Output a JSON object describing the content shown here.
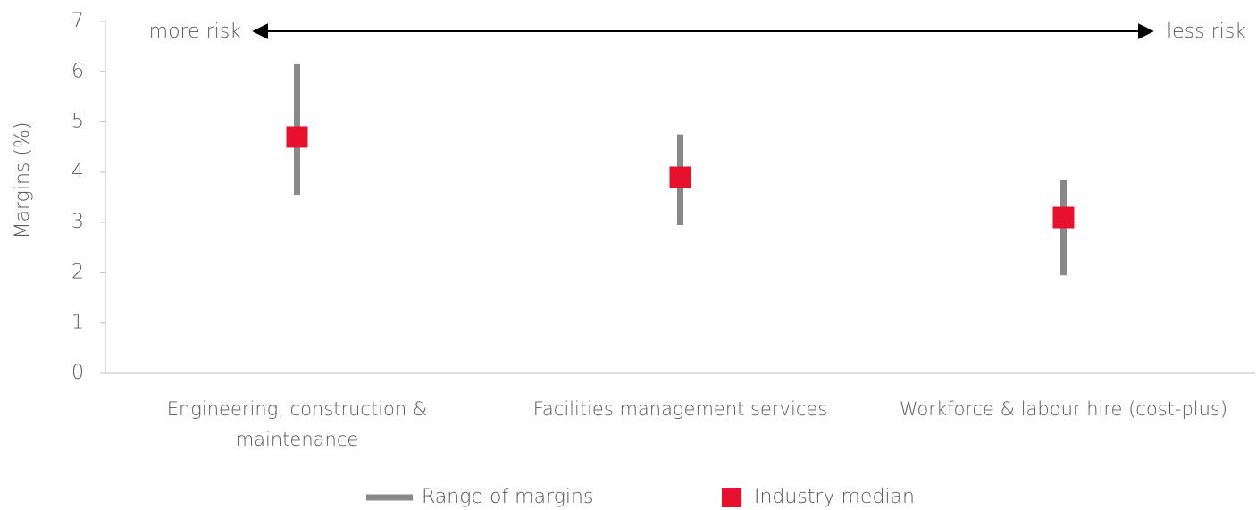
{
  "chart_data": {
    "type": "range",
    "y_label": "Margins (%)",
    "annotations": [
      "more risk",
      "less risk"
    ],
    "categories": [
      "Engineering, construction & maintenance",
      "Facilities management services",
      "Workforce & labour hire (cost-plus)"
    ],
    "series": [
      {
        "name": "Range of margins",
        "color": "#898989",
        "low": [
          3.55,
          2.95,
          1.95
        ],
        "high": [
          6.15,
          4.75,
          3.85
        ]
      },
      {
        "name": "Industry median",
        "color": "#e8112d",
        "values": [
          4.7,
          3.9,
          3.1
        ]
      }
    ],
    "ylim": [
      0,
      7
    ],
    "yticks": [
      0,
      1,
      2,
      3,
      4,
      5,
      6,
      7
    ]
  }
}
